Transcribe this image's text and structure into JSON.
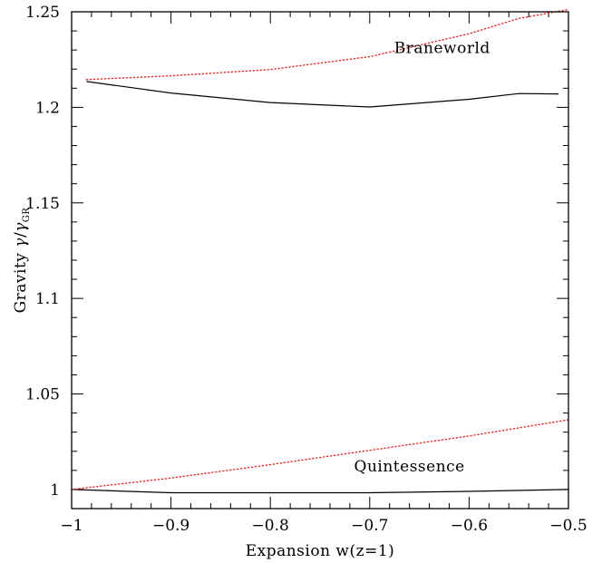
{
  "chart_data": {
    "type": "line",
    "xlabel": "Expansion w(z=1)",
    "ylabel": {
      "prefix": "Gravity ",
      "gamma": "γ",
      "slash": "/",
      "gamma2": "γ",
      "subscript": "GR"
    },
    "xlim": [
      -1,
      -0.5
    ],
    "ylim": [
      0.99,
      1.25
    ],
    "x_ticks": [
      -1,
      -0.9,
      -0.8,
      -0.7,
      -0.6,
      -0.5
    ],
    "x_tick_labels": [
      "−1",
      "−0.9",
      "−0.8",
      "−0.7",
      "−0.6",
      "−0.5"
    ],
    "y_ticks": [
      1,
      1.05,
      1.1,
      1.15,
      1.2,
      1.25
    ],
    "y_tick_labels": [
      "1",
      "1.05",
      "1.1",
      "1.15",
      "1.2",
      "1.25"
    ],
    "annotations": [
      {
        "text": "Braneworld",
        "x": -0.627,
        "y": 1.2285
      },
      {
        "text": "Quintessence",
        "x": -0.66,
        "y": 1.0095
      }
    ],
    "series": [
      {
        "style": "solid",
        "color": "#000000",
        "points": [
          [
            -0.985,
            1.2135
          ],
          [
            -0.9,
            1.2075
          ],
          [
            -0.8,
            1.2025
          ],
          [
            -0.7,
            1.2002
          ],
          [
            -0.6,
            1.2042
          ],
          [
            -0.55,
            1.2072
          ],
          [
            -0.51,
            1.207
          ]
        ]
      },
      {
        "style": "dotted",
        "color": "#e0302a",
        "points": [
          [
            -0.985,
            1.2145
          ],
          [
            -0.9,
            1.2165
          ],
          [
            -0.8,
            1.2198
          ],
          [
            -0.7,
            1.2265
          ],
          [
            -0.6,
            1.2385
          ],
          [
            -0.55,
            1.2465
          ],
          [
            -0.5,
            1.2512
          ]
        ]
      },
      {
        "style": "solid",
        "color": "#000000",
        "points": [
          [
            -1.0,
            1.0
          ],
          [
            -0.9,
            0.9983
          ],
          [
            -0.8,
            0.9983
          ],
          [
            -0.7,
            0.9983
          ],
          [
            -0.6,
            0.999
          ],
          [
            -0.5,
            1.0
          ]
        ]
      },
      {
        "style": "dotted",
        "color": "#e0302a",
        "points": [
          [
            -1.0,
            1.0
          ],
          [
            -0.9,
            1.006
          ],
          [
            -0.8,
            1.013
          ],
          [
            -0.7,
            1.0205
          ],
          [
            -0.6,
            1.028
          ],
          [
            -0.5,
            1.0365
          ]
        ]
      }
    ]
  }
}
